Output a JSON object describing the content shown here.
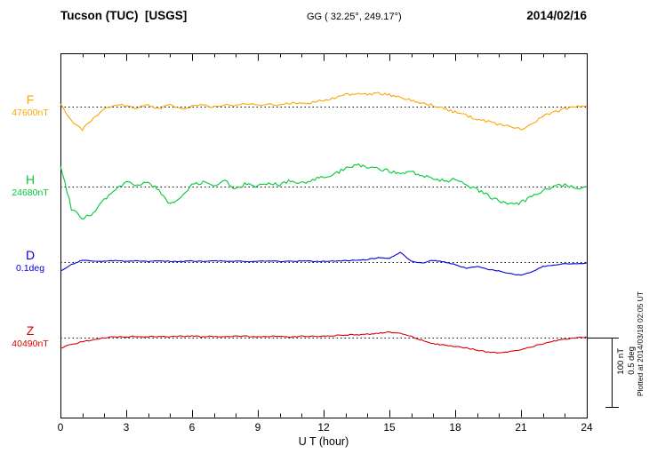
{
  "header": {
    "station": "Tucson (TUC)  [USGS]",
    "coords": "GG ( 32.25°, 249.17°)",
    "date": "2014/02/16"
  },
  "side": {
    "plotted_note": "Plotted at 2014/03/18 02:05 UT",
    "scale_nt": "100 nT",
    "scale_deg": "0.5 deg"
  },
  "chart_data": {
    "type": "line",
    "title": "Tucson (TUC) [USGS] magnetogram 2014/02/16",
    "xlabel": "U T (hour)",
    "xlim": [
      0,
      24
    ],
    "xticks": [
      0,
      3,
      6,
      9,
      12,
      15,
      18,
      21,
      24
    ],
    "grid": "dotted horizontal baseline per trace",
    "legend_position": "left of each trace",
    "scale_bar": {
      "nT": 100,
      "deg": 0.5
    },
    "series": [
      {
        "name": "F",
        "baseline_label": "47600nT",
        "baseline_value": 47600,
        "units": "nT",
        "color": "#ffa500",
        "dt": 0.5,
        "noise": 1.8,
        "values": [
          3,
          -20,
          -33,
          -18,
          -4,
          3,
          1,
          -2,
          2,
          -3,
          3,
          -4,
          0,
          3,
          -1,
          4,
          1,
          5,
          1,
          4,
          2,
          5,
          4,
          6,
          9,
          13,
          17,
          19,
          18,
          19,
          17,
          13,
          9,
          5,
          2,
          -3,
          -8,
          -13,
          -18,
          -22,
          -26,
          -29,
          -32,
          -26,
          -14,
          -8,
          -3,
          0,
          1
        ]
      },
      {
        "name": "H",
        "baseline_label": "24680nT",
        "baseline_value": 24680,
        "units": "nT",
        "color": "#00c936",
        "dt": 0.5,
        "noise": 2.5,
        "values": [
          32,
          -32,
          -47,
          -38,
          -19,
          -3,
          6,
          3,
          6,
          -6,
          -26,
          -15,
          3,
          6,
          0,
          8,
          -3,
          5,
          0,
          6,
          3,
          9,
          5,
          10,
          13,
          18,
          26,
          31,
          28,
          26,
          23,
          18,
          21,
          15,
          13,
          8,
          10,
          3,
          -5,
          -13,
          -21,
          -26,
          -23,
          -15,
          -5,
          0,
          3,
          -3,
          0
        ]
      },
      {
        "name": "D",
        "baseline_label": "0.1deg",
        "baseline_value": 0.1,
        "units": "deg",
        "color": "#0000dd",
        "dt": 0.5,
        "noise": 0.003,
        "values": [
          -0.064,
          -0.019,
          0.013,
          0.008,
          0.006,
          0.01,
          0.006,
          0.01,
          0.004,
          0.008,
          0.006,
          0.004,
          0.008,
          0.006,
          0.01,
          0.006,
          0.008,
          0.004,
          0.006,
          0.008,
          0.004,
          0.006,
          0.008,
          0.006,
          0.004,
          0.008,
          0.01,
          0.013,
          0.019,
          0.032,
          0.026,
          0.071,
          0.006,
          -0.006,
          0.013,
          0.0,
          -0.019,
          -0.045,
          -0.032,
          -0.051,
          -0.064,
          -0.083,
          -0.096,
          -0.071,
          -0.032,
          -0.019,
          -0.013,
          -0.013,
          -0.006
        ]
      },
      {
        "name": "Z",
        "baseline_label": "40490nT",
        "baseline_value": 40490,
        "units": "nT",
        "color": "#dd0000",
        "dt": 0.5,
        "noise": 0.8,
        "values": [
          -15,
          -10,
          -6,
          -3,
          0,
          1,
          1,
          2,
          1,
          2,
          1,
          2,
          2,
          1,
          2,
          1,
          2,
          2,
          1,
          2,
          2,
          1,
          2,
          2,
          2,
          3,
          4,
          4,
          5,
          6,
          8,
          6,
          2,
          -4,
          -9,
          -11,
          -13,
          -15,
          -18,
          -21,
          -22,
          -20,
          -17,
          -13,
          -9,
          -5,
          -2,
          0,
          1
        ]
      }
    ]
  }
}
